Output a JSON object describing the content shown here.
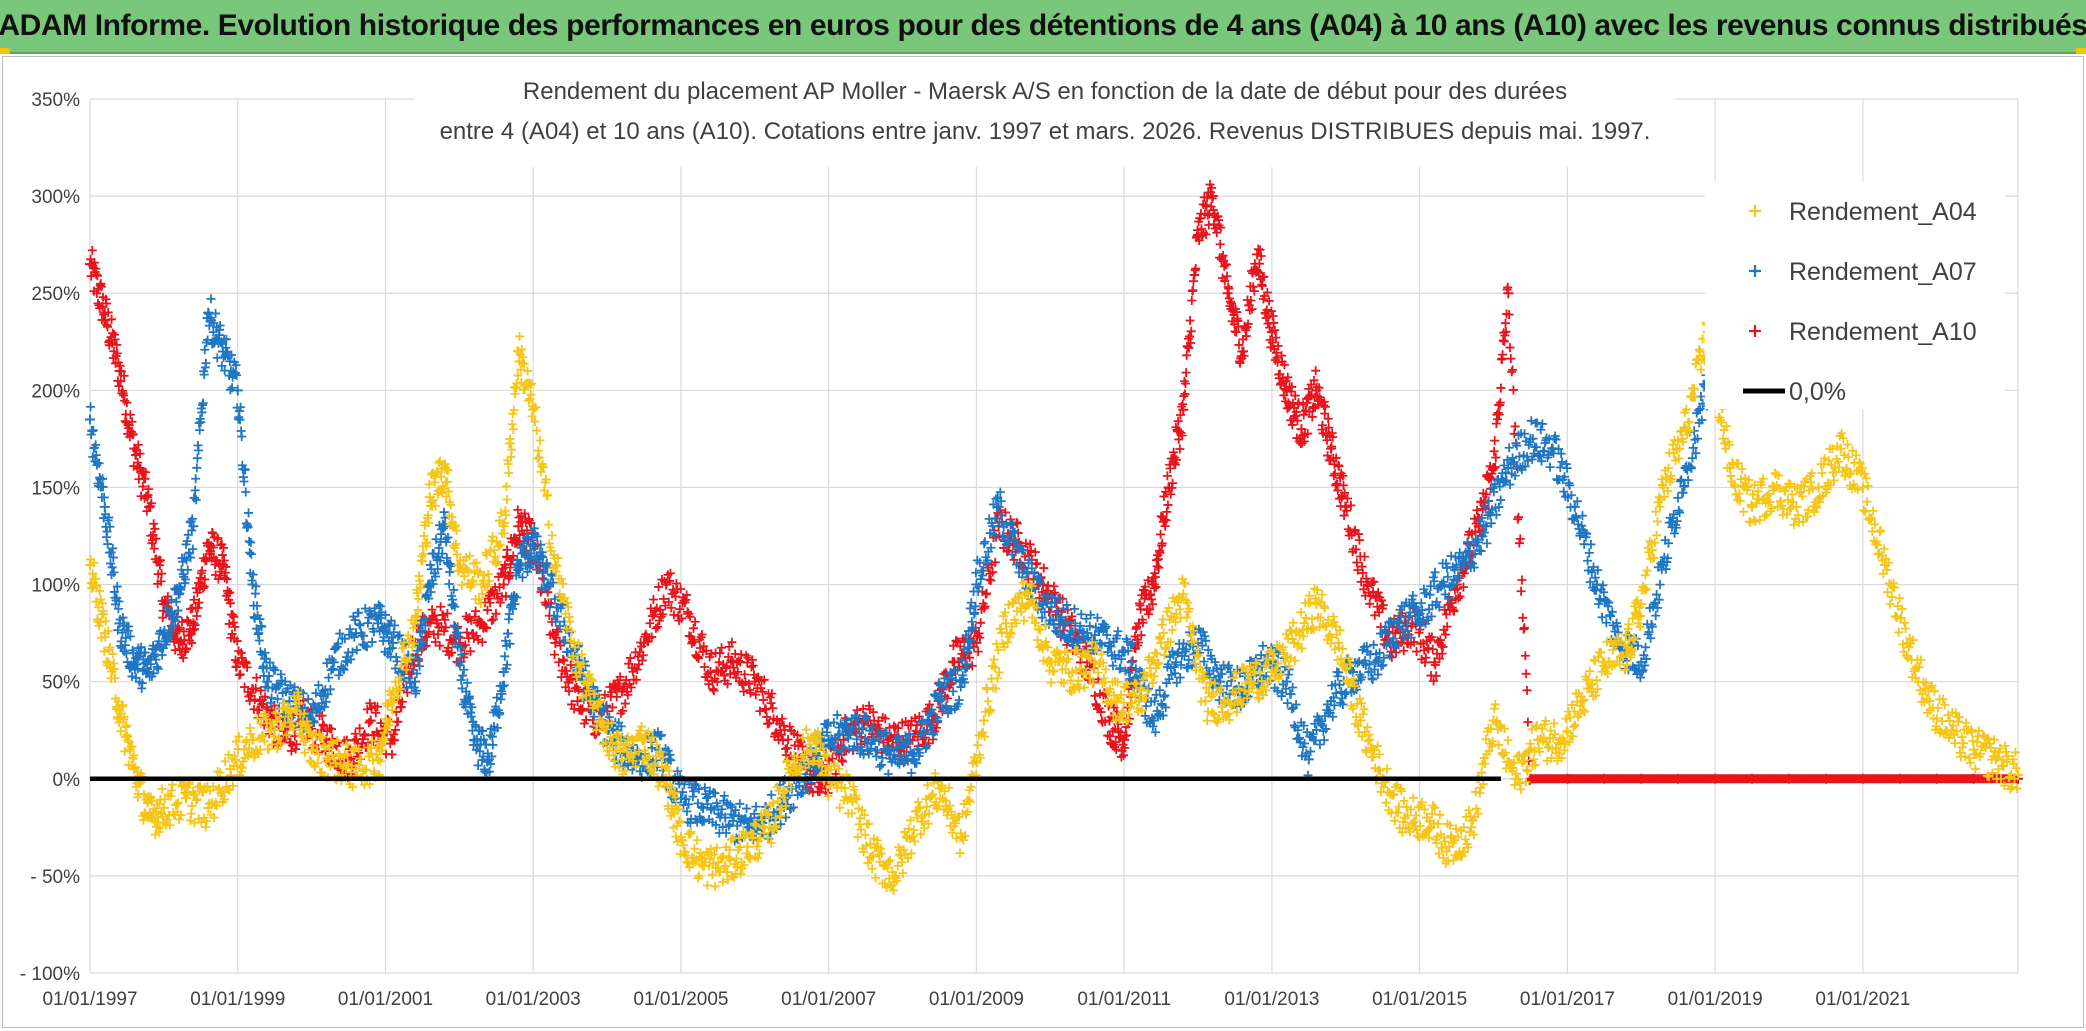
{
  "banner": {
    "title": "ADAM Informe. Evolution historique des performances en euros pour des détentions de 4 ans (A04) à 10 ans (A10) avec les revenus connus distribués"
  },
  "colors": {
    "banner_bg": "#79c77a",
    "A04": "#f5c518",
    "A07": "#1f77c4",
    "A10": "#e8141c",
    "zero_line": "#000000",
    "grid": "#d9d9d9"
  },
  "chart_data": {
    "type": "scatter",
    "title_line1": "Rendement du placement AP Moller - Maersk A/S en fonction de la date de début pour des durées",
    "title_line2": "entre 4 (A04) et 10 ans (A10). Cotations entre janv. 1997 et mars. 2026. Revenus DISTRIBUES depuis mai. 1997.",
    "xlabel": "",
    "ylabel": "",
    "x_range": [
      1997.0,
      2023.1
    ],
    "ylim": [
      -100,
      350
    ],
    "grid": true,
    "legend_position": "top-right",
    "y_ticks": [
      350,
      300,
      250,
      200,
      150,
      100,
      50,
      0,
      -50,
      -100
    ],
    "y_tick_labels": [
      "350%",
      "300%",
      "250%",
      "200%",
      "150%",
      "100%",
      "50%",
      "0%",
      "- 50%",
      "- 100%"
    ],
    "x_ticks": [
      1997,
      1999,
      2001,
      2003,
      2005,
      2007,
      2009,
      2011,
      2013,
      2015,
      2017,
      2019,
      2021
    ],
    "x_tick_labels": [
      "01/01/1997",
      "01/01/1999",
      "01/01/2001",
      "01/01/2003",
      "01/01/2005",
      "01/01/2007",
      "01/01/2009",
      "01/01/2011",
      "01/01/2013",
      "01/01/2015",
      "01/01/2017",
      "01/01/2019",
      "01/01/2021"
    ],
    "series": [
      {
        "name": "Rendement_A04",
        "color_key": "A04",
        "marker": "+",
        "x": [
          1997.0,
          1997.2,
          1997.4,
          1997.6,
          1997.8,
          1998.0,
          1998.3,
          1998.6,
          1998.9,
          1999.2,
          1999.5,
          1999.8,
          2000.0,
          2000.3,
          2000.6,
          2000.9,
          2001.1,
          2001.4,
          2001.6,
          2001.8,
          2002.0,
          2002.3,
          2002.6,
          2002.8,
          2003.0,
          2003.3,
          2003.6,
          2003.9,
          2004.2,
          2004.5,
          2004.8,
          2005.0,
          2005.3,
          2005.6,
          2005.9,
          2006.2,
          2006.5,
          2006.8,
          2007.0,
          2007.3,
          2007.6,
          2007.9,
          2008.2,
          2008.5,
          2008.8,
          2009.1,
          2009.4,
          2009.7,
          2010.0,
          2010.3,
          2010.6,
          2010.9,
          2011.2,
          2011.5,
          2011.8,
          2012.1,
          2012.4,
          2012.7,
          2013.0,
          2013.3,
          2013.6,
          2013.9,
          2014.2,
          2014.5,
          2014.8,
          2015.1,
          2015.4,
          2015.7,
          2016.0,
          2016.3,
          2016.6,
          2016.9,
          2017.2,
          2017.5,
          2017.8,
          2018.0,
          2018.3,
          2018.6,
          2018.9,
          2019.2,
          2019.5,
          2019.8,
          2020.1,
          2020.4,
          2020.7,
          2021.0,
          2021.3,
          2021.6,
          2021.9,
          2022.2,
          2022.5,
          2022.8,
          2023.1
        ],
        "y": [
          110,
          75,
          35,
          5,
          -20,
          -15,
          -10,
          -15,
          5,
          20,
          25,
          35,
          15,
          10,
          5,
          10,
          45,
          80,
          145,
          160,
          110,
          100,
          130,
          220,
          190,
          110,
          60,
          30,
          10,
          20,
          0,
          -30,
          -45,
          -45,
          -35,
          -25,
          5,
          20,
          0,
          -10,
          -40,
          -50,
          -20,
          -5,
          -30,
          30,
          80,
          95,
          60,
          55,
          60,
          40,
          40,
          70,
          95,
          40,
          40,
          50,
          55,
          70,
          90,
          70,
          30,
          0,
          -20,
          -20,
          -35,
          -25,
          30,
          0,
          20,
          20,
          40,
          60,
          65,
          90,
          150,
          180,
          230,
          160,
          140,
          150,
          140,
          150,
          170,
          150,
          110,
          70,
          40,
          25,
          15,
          10,
          2
        ]
      },
      {
        "name": "Rendement_A07",
        "color_key": "A07",
        "marker": "+",
        "x": [
          1997.0,
          1997.2,
          1997.4,
          1997.6,
          1997.8,
          1998.0,
          1998.2,
          1998.4,
          1998.6,
          1998.8,
          1999.0,
          1999.2,
          1999.4,
          1999.7,
          2000.0,
          2000.3,
          2000.6,
          2000.9,
          2001.1,
          2001.4,
          2001.6,
          2001.8,
          2002.0,
          2002.2,
          2002.4,
          2002.6,
          2002.8,
          2003.0,
          2003.2,
          2003.5,
          2003.8,
          2004.1,
          2004.4,
          2004.7,
          2005.0,
          2005.3,
          2005.6,
          2005.9,
          2006.2,
          2006.5,
          2006.8,
          2007.0,
          2007.3,
          2007.6,
          2007.9,
          2008.2,
          2008.5,
          2008.8,
          2009.0,
          2009.3,
          2009.6,
          2009.9,
          2010.2,
          2010.5,
          2010.8,
          2011.1,
          2011.4,
          2011.7,
          2012.0,
          2012.3,
          2012.6,
          2012.9,
          2013.2,
          2013.5,
          2013.8,
          2014.1,
          2014.4,
          2014.7,
          2015.0,
          2015.3,
          2015.6,
          2015.9,
          2016.2,
          2016.5,
          2016.8,
          2017.1,
          2017.4,
          2017.7,
          2018.0,
          2018.3,
          2018.6,
          2018.9
        ],
        "y": [
          185,
          140,
          80,
          60,
          55,
          75,
          95,
          130,
          240,
          220,
          200,
          100,
          50,
          40,
          30,
          60,
          75,
          80,
          70,
          50,
          100,
          130,
          60,
          20,
          10,
          55,
          110,
          120,
          100,
          70,
          40,
          20,
          10,
          15,
          -10,
          -15,
          -20,
          -25,
          -20,
          -5,
          10,
          20,
          25,
          20,
          10,
          15,
          40,
          50,
          100,
          140,
          110,
          90,
          80,
          75,
          70,
          60,
          30,
          60,
          70,
          50,
          45,
          60,
          50,
          10,
          40,
          55,
          60,
          80,
          85,
          100,
          110,
          130,
          160,
          175,
          170,
          140,
          100,
          70,
          60,
          110,
          160,
          200
        ]
      },
      {
        "name": "Rendement_A10",
        "color_key": "A10",
        "marker": "+",
        "x": [
          1997.0,
          1997.2,
          1997.4,
          1997.6,
          1997.8,
          1998.0,
          1998.2,
          1998.4,
          1998.6,
          1998.8,
          1999.0,
          1999.3,
          1999.6,
          1999.9,
          2000.2,
          2000.5,
          2000.8,
          2001.1,
          2001.4,
          2001.7,
          2002.0,
          2002.3,
          2002.6,
          2002.8,
          2003.0,
          2003.3,
          2003.6,
          2003.9,
          2004.2,
          2004.5,
          2004.8,
          2005.1,
          2005.4,
          2005.7,
          2006.0,
          2006.3,
          2006.6,
          2006.9,
          2007.2,
          2007.5,
          2007.8,
          2008.1,
          2008.4,
          2008.7,
          2009.0,
          2009.3,
          2009.6,
          2009.9,
          2010.2,
          2010.5,
          2010.8,
          2011.0,
          2011.2,
          2011.4,
          2011.6,
          2011.8,
          2012.0,
          2012.2,
          2012.4,
          2012.6,
          2012.8,
          2013.0,
          2013.2,
          2013.4,
          2013.6,
          2013.8,
          2014.0,
          2014.3,
          2014.6,
          2014.9,
          2015.2,
          2015.5,
          2015.8,
          2016.0,
          2016.2,
          2016.5,
          2017.0,
          2017.5,
          2018.0,
          2018.5,
          2019.0,
          2019.5,
          2020.0,
          2020.5,
          2021.0,
          2021.5,
          2022.0,
          2022.5,
          2023.1
        ],
        "y": [
          265,
          240,
          210,
          170,
          140,
          90,
          70,
          80,
          120,
          110,
          60,
          40,
          20,
          30,
          20,
          10,
          30,
          20,
          70,
          80,
          70,
          80,
          100,
          130,
          120,
          70,
          40,
          30,
          45,
          70,
          100,
          85,
          55,
          60,
          50,
          30,
          10,
          -5,
          20,
          30,
          20,
          20,
          30,
          60,
          70,
          130,
          120,
          100,
          80,
          60,
          30,
          20,
          80,
          100,
          150,
          190,
          280,
          300,
          250,
          220,
          270,
          230,
          200,
          180,
          200,
          170,
          140,
          100,
          70,
          80,
          60,
          100,
          130,
          160,
          250,
          0,
          0,
          0,
          0,
          0,
          0,
          0,
          0,
          0,
          0,
          0,
          0,
          0,
          0
        ]
      },
      {
        "name": "0,0%",
        "color_key": "zero_line",
        "marker": "line",
        "x": [
          1997.0,
          2016.1
        ],
        "y": [
          0,
          0
        ]
      }
    ]
  }
}
